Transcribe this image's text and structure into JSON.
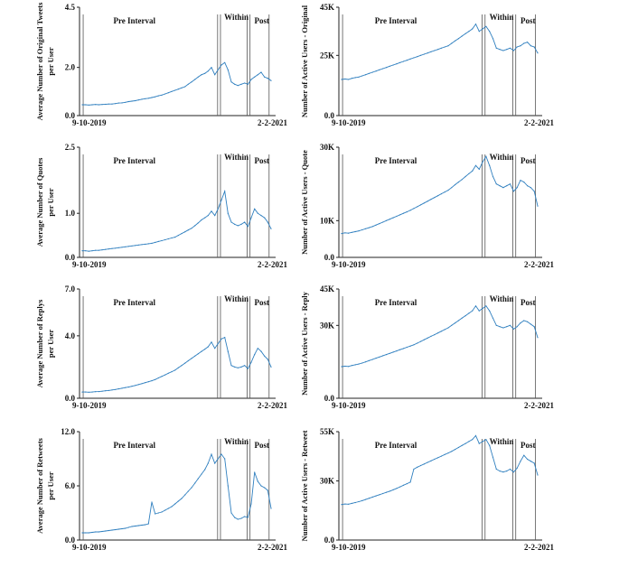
{
  "chart_data": [
    {
      "id": "orig_avg",
      "type": "line",
      "ylabel_lines": [
        "Average Number of Original Tweets",
        "per User"
      ],
      "ylim": [
        0,
        4.5
      ],
      "yticks": [
        "0.0",
        "2.0",
        "4.5"
      ],
      "ytick_values": [
        0,
        2,
        4.5
      ],
      "xlabel_start": "9-10-2019",
      "xlabel_end": "2-2-2021",
      "intervals": [
        "Pre Interval",
        "Within",
        "Post"
      ],
      "values": [
        0.45,
        0.45,
        0.44,
        0.45,
        0.46,
        0.45,
        0.46,
        0.47,
        0.48,
        0.48,
        0.5,
        0.52,
        0.53,
        0.55,
        0.58,
        0.6,
        0.62,
        0.65,
        0.68,
        0.7,
        0.72,
        0.75,
        0.78,
        0.82,
        0.85,
        0.9,
        0.95,
        1.0,
        1.05,
        1.1,
        1.15,
        1.2,
        1.3,
        1.4,
        1.5,
        1.6,
        1.7,
        1.75,
        1.85,
        2.0,
        1.7,
        1.9,
        2.1,
        2.2,
        1.9,
        1.4,
        1.3,
        1.25,
        1.3,
        1.35,
        1.3,
        1.5,
        1.6,
        1.7,
        1.8,
        1.6,
        1.55,
        1.45
      ]
    },
    {
      "id": "orig_users",
      "type": "line",
      "ylabel_lines": [
        "Number of Active Users - Original"
      ],
      "ylim": [
        0,
        45000
      ],
      "yticks": [
        "0.0",
        "25K",
        "45K"
      ],
      "ytick_values": [
        0,
        25000,
        45000
      ],
      "xlabel_start": "9-10-2019",
      "xlabel_end": "2-2-2021",
      "intervals": [
        "Pre Interval",
        "Within",
        "Post"
      ],
      "values": [
        15000,
        15200,
        15000,
        15500,
        15800,
        16000,
        16500,
        17000,
        17500,
        18000,
        18500,
        19000,
        19500,
        20000,
        20500,
        21000,
        21500,
        22000,
        22500,
        23000,
        23500,
        24000,
        24500,
        25000,
        25500,
        26000,
        26500,
        27000,
        27500,
        28000,
        28500,
        29000,
        30000,
        31000,
        32000,
        33000,
        34000,
        35000,
        36000,
        38000,
        35000,
        36000,
        37000,
        35000,
        32000,
        28000,
        27500,
        27000,
        27500,
        28000,
        27000,
        28500,
        29000,
        30000,
        30500,
        29000,
        28500,
        26000
      ]
    },
    {
      "id": "quote_avg",
      "type": "line",
      "ylabel_lines": [
        "Average Number of Quotes",
        "per User"
      ],
      "ylim": [
        0,
        2.5
      ],
      "yticks": [
        "0.0",
        "1.0",
        "2.5"
      ],
      "ytick_values": [
        0,
        1,
        2.5
      ],
      "xlabel_start": "9-10-2019",
      "xlabel_end": "2-2-2021",
      "intervals": [
        "Pre Interval",
        "Within",
        "Post"
      ],
      "values": [
        0.15,
        0.15,
        0.14,
        0.15,
        0.16,
        0.16,
        0.17,
        0.18,
        0.19,
        0.2,
        0.21,
        0.22,
        0.23,
        0.24,
        0.25,
        0.26,
        0.27,
        0.28,
        0.29,
        0.3,
        0.31,
        0.32,
        0.34,
        0.36,
        0.38,
        0.4,
        0.42,
        0.44,
        0.46,
        0.5,
        0.54,
        0.58,
        0.62,
        0.66,
        0.72,
        0.78,
        0.85,
        0.9,
        0.95,
        1.05,
        0.95,
        1.1,
        1.3,
        1.5,
        1.0,
        0.8,
        0.75,
        0.72,
        0.75,
        0.8,
        0.7,
        0.9,
        1.1,
        1.0,
        0.95,
        0.9,
        0.8,
        0.65
      ]
    },
    {
      "id": "quote_users",
      "type": "line",
      "ylabel_lines": [
        "Number of Active Users - Quote"
      ],
      "ylim": [
        0,
        30000
      ],
      "yticks": [
        "0.0",
        "10K",
        "30K"
      ],
      "ytick_values": [
        0,
        10000,
        30000
      ],
      "xlabel_start": "9-10-2019",
      "xlabel_end": "2-2-2021",
      "intervals": [
        "Pre Interval",
        "Within",
        "Post"
      ],
      "values": [
        6500,
        6700,
        6600,
        6800,
        7000,
        7200,
        7500,
        7800,
        8100,
        8400,
        8800,
        9200,
        9600,
        10000,
        10400,
        10800,
        11200,
        11600,
        12000,
        12400,
        12800,
        13300,
        13800,
        14300,
        14800,
        15300,
        15800,
        16300,
        16800,
        17300,
        17800,
        18300,
        19000,
        19800,
        20500,
        21200,
        22000,
        22800,
        23500,
        25000,
        24000,
        26000,
        27500,
        25000,
        22000,
        20000,
        19500,
        19000,
        19500,
        20000,
        18000,
        19000,
        21000,
        20500,
        19500,
        19000,
        18000,
        14000
      ]
    },
    {
      "id": "reply_avg",
      "type": "line",
      "ylabel_lines": [
        "Average Number of Replys",
        "per User"
      ],
      "ylim": [
        0,
        7
      ],
      "yticks": [
        "0.0",
        "4.0",
        "7.0"
      ],
      "ytick_values": [
        0,
        4,
        7
      ],
      "xlabel_start": "9-10-2019",
      "xlabel_end": "2-2-2021",
      "intervals": [
        "Pre Interval",
        "Within",
        "Post"
      ],
      "values": [
        0.4,
        0.4,
        0.39,
        0.4,
        0.42,
        0.43,
        0.45,
        0.48,
        0.5,
        0.53,
        0.56,
        0.6,
        0.64,
        0.68,
        0.72,
        0.77,
        0.82,
        0.88,
        0.94,
        1.0,
        1.06,
        1.12,
        1.2,
        1.3,
        1.4,
        1.5,
        1.6,
        1.7,
        1.8,
        1.95,
        2.1,
        2.25,
        2.4,
        2.55,
        2.7,
        2.85,
        3.0,
        3.15,
        3.3,
        3.6,
        3.2,
        3.5,
        3.8,
        3.9,
        3.0,
        2.1,
        2.0,
        1.95,
        2.0,
        2.1,
        1.9,
        2.3,
        2.8,
        3.2,
        3.0,
        2.7,
        2.5,
        2.0
      ]
    },
    {
      "id": "reply_users",
      "type": "line",
      "ylabel_lines": [
        "Number of Active Users - Reply"
      ],
      "ylim": [
        0,
        45000
      ],
      "yticks": [
        "0.0",
        "30K",
        "45K"
      ],
      "ytick_values": [
        0,
        30000,
        45000
      ],
      "xlabel_start": "9-10-2019",
      "xlabel_end": "2-2-2021",
      "intervals": [
        "Pre Interval",
        "Within",
        "Post"
      ],
      "values": [
        13000,
        13200,
        13100,
        13500,
        13800,
        14100,
        14500,
        15000,
        15500,
        16000,
        16500,
        17000,
        17500,
        18000,
        18500,
        19000,
        19500,
        20000,
        20500,
        21000,
        21500,
        22000,
        22700,
        23400,
        24100,
        24800,
        25500,
        26200,
        26900,
        27600,
        28300,
        29000,
        30000,
        31000,
        32000,
        33000,
        34000,
        35000,
        36000,
        38000,
        36000,
        37000,
        38000,
        36000,
        33000,
        30000,
        29500,
        29000,
        29500,
        30000,
        28500,
        29500,
        31000,
        32000,
        31500,
        30500,
        29500,
        25000
      ]
    },
    {
      "id": "retweet_avg",
      "type": "line",
      "ylabel_lines": [
        "Average Number of Retweets",
        "per User"
      ],
      "ylim": [
        0,
        12
      ],
      "yticks": [
        "0.0",
        "6.0",
        "12.0"
      ],
      "ytick_values": [
        0,
        6,
        12
      ],
      "xlabel_start": "9-10-2019",
      "xlabel_end": "2-2-2021",
      "intervals": [
        "Pre Interval",
        "Within",
        "Post"
      ],
      "values": [
        0.8,
        0.8,
        0.8,
        0.85,
        0.9,
        0.9,
        0.95,
        1.0,
        1.05,
        1.1,
        1.15,
        1.2,
        1.25,
        1.3,
        1.4,
        1.5,
        1.55,
        1.6,
        1.65,
        1.7,
        1.8,
        4.2,
        2.9,
        3.0,
        3.1,
        3.3,
        3.5,
        3.7,
        4.0,
        4.3,
        4.6,
        5.0,
        5.4,
        5.8,
        6.3,
        6.8,
        7.3,
        7.8,
        8.5,
        9.5,
        8.5,
        9.0,
        9.5,
        9.0,
        6.0,
        3.0,
        2.5,
        2.3,
        2.4,
        2.6,
        2.5,
        4.0,
        7.5,
        6.5,
        6.0,
        5.8,
        5.5,
        3.5
      ]
    },
    {
      "id": "retweet_users",
      "type": "line",
      "ylabel_lines": [
        "Number of Active Users - Retweet"
      ],
      "ylim": [
        0,
        55000
      ],
      "yticks": [
        "0.0",
        "30K",
        "55K"
      ],
      "ytick_values": [
        0,
        30000,
        55000
      ],
      "xlabel_start": "9-10-2019",
      "xlabel_end": "2-2-2021",
      "intervals": [
        "Pre Interval",
        "Within",
        "Post"
      ],
      "values": [
        18000,
        18300,
        18200,
        18600,
        19000,
        19500,
        20000,
        20600,
        21200,
        21800,
        22400,
        23000,
        23600,
        24200,
        24800,
        25500,
        26200,
        27000,
        27800,
        28600,
        29400,
        36000,
        37000,
        37800,
        38600,
        39400,
        40200,
        41000,
        41800,
        42600,
        43400,
        44200,
        45000,
        46000,
        47000,
        48000,
        49000,
        50000,
        51000,
        53000,
        49000,
        50000,
        51000,
        48000,
        42000,
        36000,
        35000,
        34500,
        35000,
        36000,
        34500,
        36500,
        40000,
        43000,
        41000,
        40000,
        39000,
        33000
      ]
    }
  ]
}
